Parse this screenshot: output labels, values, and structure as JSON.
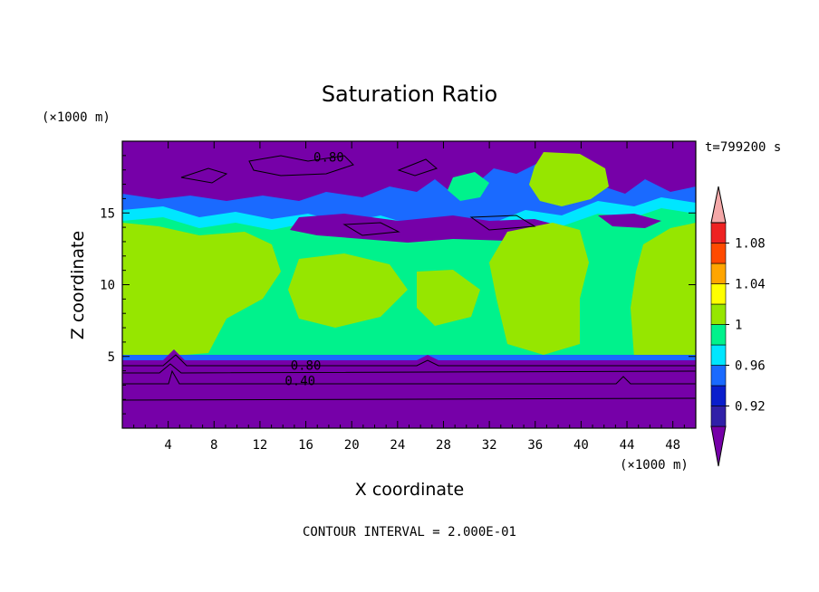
{
  "chart_data": {
    "type": "heatmap",
    "title": "Saturation Ratio",
    "xlabel": "X coordinate",
    "ylabel": "Z coordinate",
    "x_unit": "(×1000 m)",
    "y_unit": "(×1000 m)",
    "time_label": "t=799200 s",
    "footer": "CONTOUR INTERVAL = 2.000E-01",
    "xlim": [
      0,
      50
    ],
    "ylim": [
      0,
      20
    ],
    "x_ticks": [
      4,
      8,
      12,
      16,
      20,
      24,
      28,
      32,
      36,
      40,
      44,
      48
    ],
    "y_ticks": [
      5,
      10,
      15
    ],
    "contour_labels": [
      {
        "text": "0.80",
        "x": 18,
        "z": 18.9
      },
      {
        "text": "0.80",
        "x": 16,
        "z": 4.4
      },
      {
        "text": "0.40",
        "x": 15.5,
        "z": 3.3
      }
    ],
    "colorbar": {
      "tick_labels": [
        "1.08",
        "1.04",
        "1",
        "0.96",
        "0.92"
      ],
      "tick_levels": [
        1.08,
        1.04,
        1.0,
        0.96,
        0.92
      ],
      "levels": [
        0.9,
        0.92,
        0.94,
        0.96,
        0.98,
        1.0,
        1.02,
        1.04,
        1.06,
        1.08,
        1.1
      ],
      "colors": [
        "#7600A8",
        "#3020A8",
        "#0A1ECC",
        "#1A6AFF",
        "#00E6FF",
        "#00F28C",
        "#96E600",
        "#FFFF00",
        "#FFA500",
        "#FF4A00",
        "#EE2222",
        "#F4A8A8"
      ]
    }
  }
}
